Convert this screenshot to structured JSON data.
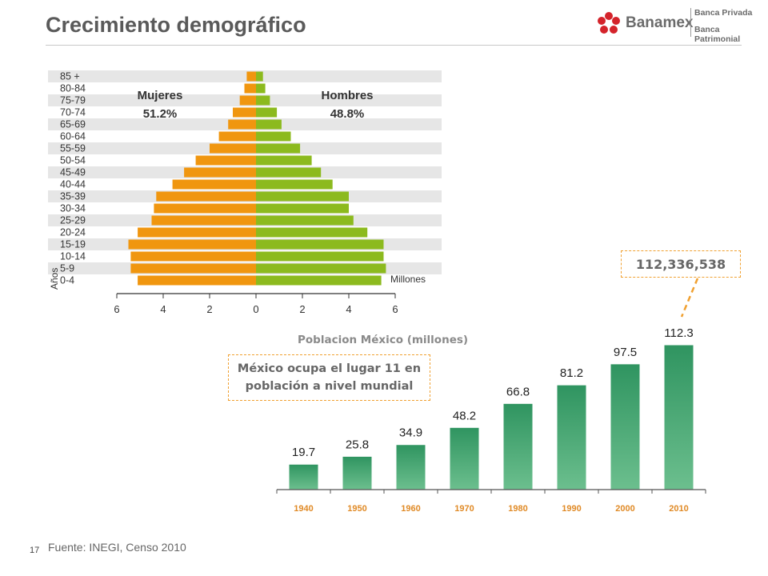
{
  "header": {
    "title": "Crecimiento demográfico",
    "logo_name": "Banamex",
    "logo_line1": "Banca Privada",
    "logo_line2": "Banca Patrimonial"
  },
  "footer": {
    "page_number": "17",
    "source": "Fuente: INEGI, Censo 2010"
  },
  "callouts": {
    "total_population": "112,336,538",
    "ranking": "México ocupa el lugar 11 en población a nivel mundial"
  },
  "colors": {
    "female": "#f0960f",
    "male": "#8cba1e",
    "bars": "#3e9e6a",
    "band": "#e6e6e6",
    "callout_border": "#f0a030"
  },
  "chart_data": [
    {
      "type": "bar",
      "orientation": "horizontal",
      "subtype": "population pyramid",
      "categories": [
        "85 +",
        "80-84",
        "75-79",
        "70-74",
        "65-69",
        "60-64",
        "55-59",
        "50-54",
        "45-49",
        "40-44",
        "35-39",
        "30-34",
        "25-29",
        "20-24",
        "15-19",
        "10-14",
        "5-9",
        "0-4"
      ],
      "series": [
        {
          "name": "Mujeres",
          "share": "51.2%",
          "values": [
            0.4,
            0.5,
            0.7,
            1.0,
            1.2,
            1.6,
            2.0,
            2.6,
            3.1,
            3.6,
            4.3,
            4.4,
            4.5,
            5.1,
            5.5,
            5.4,
            5.4,
            5.1
          ]
        },
        {
          "name": "Hombres",
          "share": "48.8%",
          "values": [
            0.3,
            0.4,
            0.6,
            0.9,
            1.1,
            1.5,
            1.9,
            2.4,
            2.8,
            3.3,
            4.0,
            4.0,
            4.2,
            4.8,
            5.5,
            5.5,
            5.6,
            5.4
          ]
        }
      ],
      "xticks": [
        "6",
        "4",
        "2",
        "0",
        "2",
        "4",
        "6"
      ],
      "xlim": [
        -6,
        6
      ],
      "xlabel": "Millones",
      "ylabel": "Años",
      "grid": false,
      "banded_rows": true
    },
    {
      "type": "bar",
      "title": "Poblacion México (millones)",
      "categories": [
        "1940",
        "1950",
        "1960",
        "1970",
        "1980",
        "1990",
        "2000",
        "2010"
      ],
      "values": [
        19.7,
        25.8,
        34.9,
        48.2,
        66.8,
        81.2,
        97.5,
        112.3
      ],
      "ylim": [
        0,
        120
      ],
      "data_labels": true,
      "grid": false
    }
  ]
}
